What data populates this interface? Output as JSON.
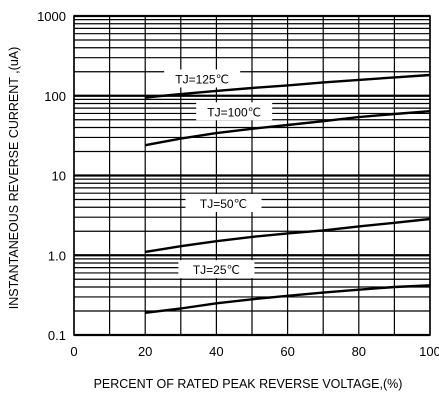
{
  "chart_data": {
    "type": "line",
    "title": "",
    "xlabel": "PERCENT OF RATED PEAK REVERSE VOLTAGE,(%)",
    "ylabel": "INSTANTANEOUS REVERSE CURRENT ,(uA)",
    "xlim": [
      0,
      100
    ],
    "ylim": [
      0.1,
      1000
    ],
    "yscale": "log",
    "grid": true,
    "x_ticks": [
      0,
      20,
      40,
      60,
      80,
      100
    ],
    "x_tick_labels": [
      "0",
      "20",
      "40",
      "60",
      "80",
      "100"
    ],
    "y_ticks": [
      0.1,
      1.0,
      10,
      100,
      1000
    ],
    "y_tick_labels": [
      "0.1",
      "1.0",
      "10",
      "100",
      "1000"
    ],
    "series": [
      {
        "name": "TJ=125℃",
        "x": [
          20,
          30,
          40,
          50,
          60,
          70,
          80,
          90,
          100
        ],
        "y": [
          95,
          105,
          115,
          125,
          135,
          147,
          158,
          170,
          182
        ]
      },
      {
        "name": "TJ=100℃",
        "x": [
          20,
          30,
          40,
          50,
          60,
          70,
          80,
          90,
          100
        ],
        "y": [
          24,
          29,
          34,
          38.5,
          43,
          48,
          54,
          59,
          64
        ]
      },
      {
        "name": "TJ=50℃",
        "x": [
          20,
          30,
          40,
          50,
          60,
          70,
          80,
          90,
          100
        ],
        "y": [
          1.1,
          1.3,
          1.5,
          1.7,
          1.88,
          2.05,
          2.3,
          2.55,
          2.85
        ]
      },
      {
        "name": "TJ=25℃",
        "x": [
          20,
          30,
          40,
          50,
          60,
          70,
          80,
          90,
          100
        ],
        "y": [
          0.19,
          0.215,
          0.25,
          0.28,
          0.31,
          0.34,
          0.37,
          0.4,
          0.42
        ]
      }
    ]
  }
}
